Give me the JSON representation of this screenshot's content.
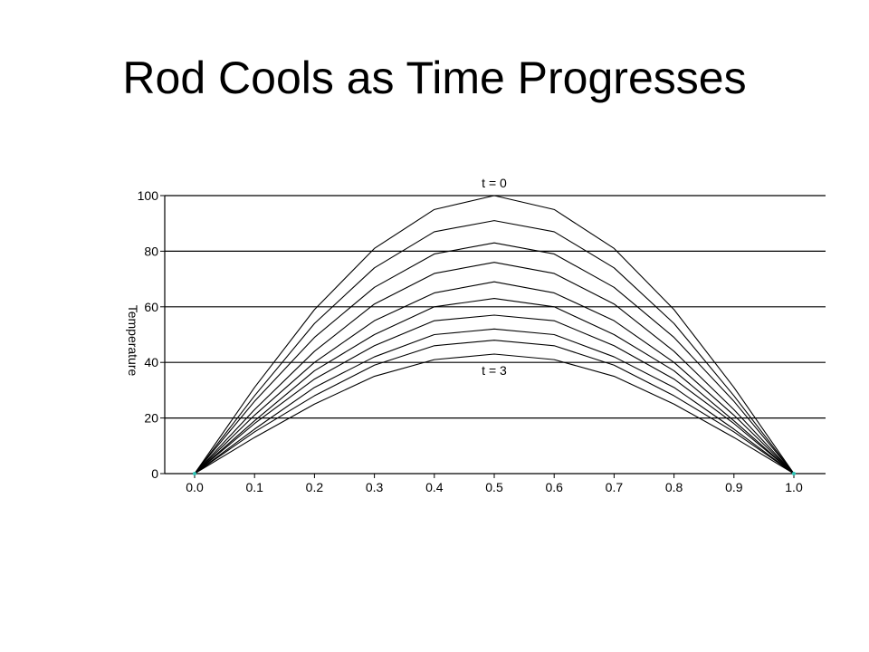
{
  "slide": {
    "title": "Rod Cools as Time Progresses"
  },
  "chart_data": {
    "type": "line",
    "title": "",
    "xlabel": "",
    "ylabel": "Temperature",
    "xlim": [
      0,
      1
    ],
    "ylim": [
      0,
      100
    ],
    "grid": "horizontal",
    "x_ticks": [
      "0.0",
      "0.1",
      "0.2",
      "0.3",
      "0.4",
      "0.5",
      "0.6",
      "0.7",
      "0.8",
      "0.9",
      "1.0"
    ],
    "y_ticks": [
      "0",
      "20",
      "40",
      "60",
      "80",
      "100"
    ],
    "annotations": [
      {
        "text": "t = 0",
        "x": 0.5,
        "y": 100,
        "position": "above"
      },
      {
        "text": "t = 3",
        "x": 0.5,
        "y": 40,
        "position": "below"
      }
    ],
    "line_color": "#000000",
    "grid_color": "#000000",
    "endpoint_marker_color": "#2ec4b6",
    "x": [
      0.0,
      0.1,
      0.2,
      0.3,
      0.4,
      0.5,
      0.6,
      0.7,
      0.8,
      0.9,
      1.0
    ],
    "series": [
      {
        "values": [
          0,
          31,
          59,
          81,
          95,
          100,
          95,
          81,
          59,
          31,
          0
        ]
      },
      {
        "values": [
          0,
          28,
          54,
          74,
          87,
          91,
          87,
          74,
          54,
          28,
          0
        ]
      },
      {
        "values": [
          0,
          26,
          49,
          67,
          79,
          83,
          79,
          67,
          49,
          26,
          0
        ]
      },
      {
        "values": [
          0,
          23,
          44,
          61,
          72,
          76,
          72,
          61,
          44,
          23,
          0
        ]
      },
      {
        "values": [
          0,
          21,
          40,
          55,
          65,
          69,
          65,
          55,
          40,
          21,
          0
        ]
      },
      {
        "values": [
          0,
          19,
          37,
          50,
          60,
          63,
          60,
          50,
          37,
          19,
          0
        ]
      },
      {
        "values": [
          0,
          18,
          34,
          46,
          55,
          57,
          55,
          46,
          34,
          18,
          0
        ]
      },
      {
        "values": [
          0,
          16,
          31,
          42,
          50,
          52,
          50,
          42,
          31,
          16,
          0
        ]
      },
      {
        "values": [
          0,
          15,
          28,
          39,
          46,
          48,
          46,
          39,
          28,
          15,
          0
        ]
      },
      {
        "values": [
          0,
          13,
          25,
          35,
          41,
          43,
          41,
          35,
          25,
          13,
          0
        ]
      }
    ]
  }
}
